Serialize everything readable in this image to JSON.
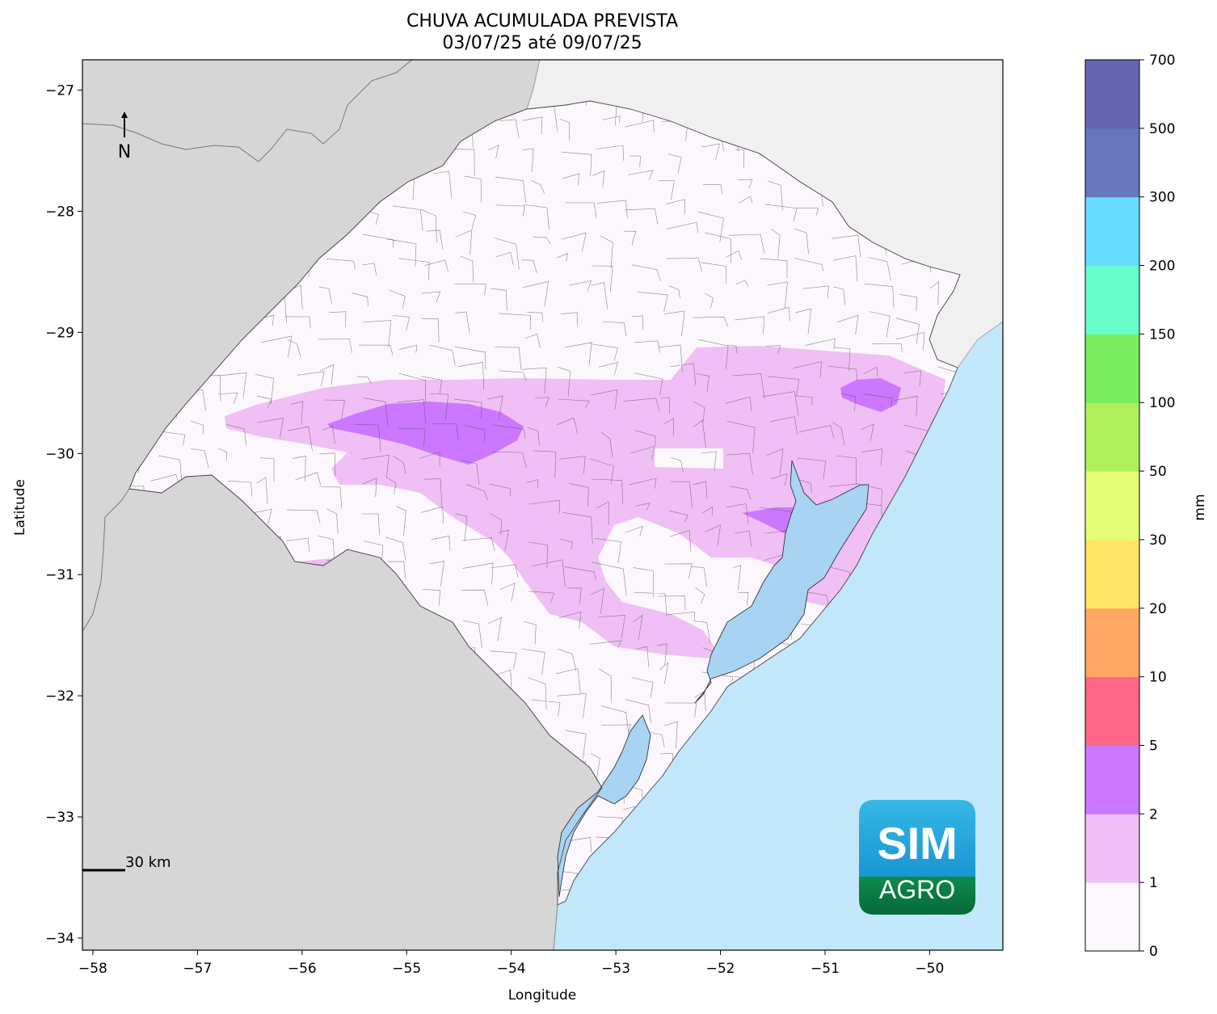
{
  "title": {
    "line1": "CHUVA ACUMULADA PREVISTA",
    "line2": "03/07/25 até 09/07/25"
  },
  "axes": {
    "xlabel": "Longitude",
    "ylabel": "Latitude",
    "xticks": [
      "−58",
      "−57",
      "−56",
      "−55",
      "−54",
      "−53",
      "−52",
      "−51",
      "−50"
    ],
    "yticks": [
      "−27",
      "−28",
      "−29",
      "−30",
      "−31",
      "−32",
      "−33",
      "−34"
    ],
    "xlim": [
      -58.1,
      -49.3
    ],
    "ylim": [
      -34.1,
      -26.75
    ]
  },
  "north_arrow": {
    "label": "N"
  },
  "scale_bar": {
    "label": "30 km"
  },
  "logo": {
    "top_text": "SIM",
    "bottom_text": "AGRO"
  },
  "colorbar": {
    "label": "mm",
    "bounds": [
      "0",
      "1",
      "2",
      "5",
      "10",
      "20",
      "30",
      "50",
      "100",
      "150",
      "200",
      "300",
      "500",
      "700"
    ],
    "colors": [
      "#fcf7fc",
      "#f0bff5",
      "#cc77ff",
      "#ff6688",
      "#ffa866",
      "#ffe466",
      "#e6ff77",
      "#b0f05c",
      "#7aee5e",
      "#66ffcc",
      "#66ddff",
      "#6677bb",
      "#6666b0"
    ]
  },
  "colors": {
    "land_outside": "#d6d6d6",
    "land_north": "#f0f0f0",
    "ocean": "#c2e6fa",
    "lagoon": "#a9d3f2",
    "rs_base": "#fcf7fc",
    "rain_1_2": "#f0bff5",
    "rain_2_5": "#cc77ff"
  }
}
